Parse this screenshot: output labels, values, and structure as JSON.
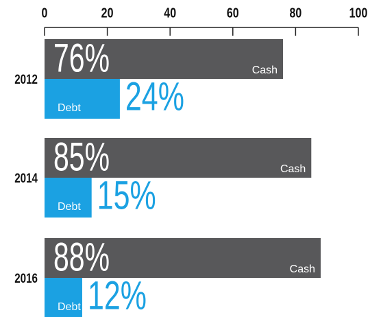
{
  "chart_data": {
    "type": "bar",
    "orientation": "horizontal",
    "categories": [
      "2012",
      "2014",
      "2016"
    ],
    "series": [
      {
        "name": "Cash",
        "color": "#58585a",
        "values": [
          76,
          85,
          88
        ],
        "value_labels": [
          "76%",
          "85%",
          "88%"
        ]
      },
      {
        "name": "Debt",
        "color": "#1ba1e2",
        "values": [
          24,
          15,
          12
        ],
        "value_labels": [
          "24%",
          "15%",
          "12%"
        ]
      }
    ],
    "xlim": [
      0,
      100
    ],
    "xticks": [
      0,
      20,
      40,
      60,
      80,
      100
    ]
  }
}
